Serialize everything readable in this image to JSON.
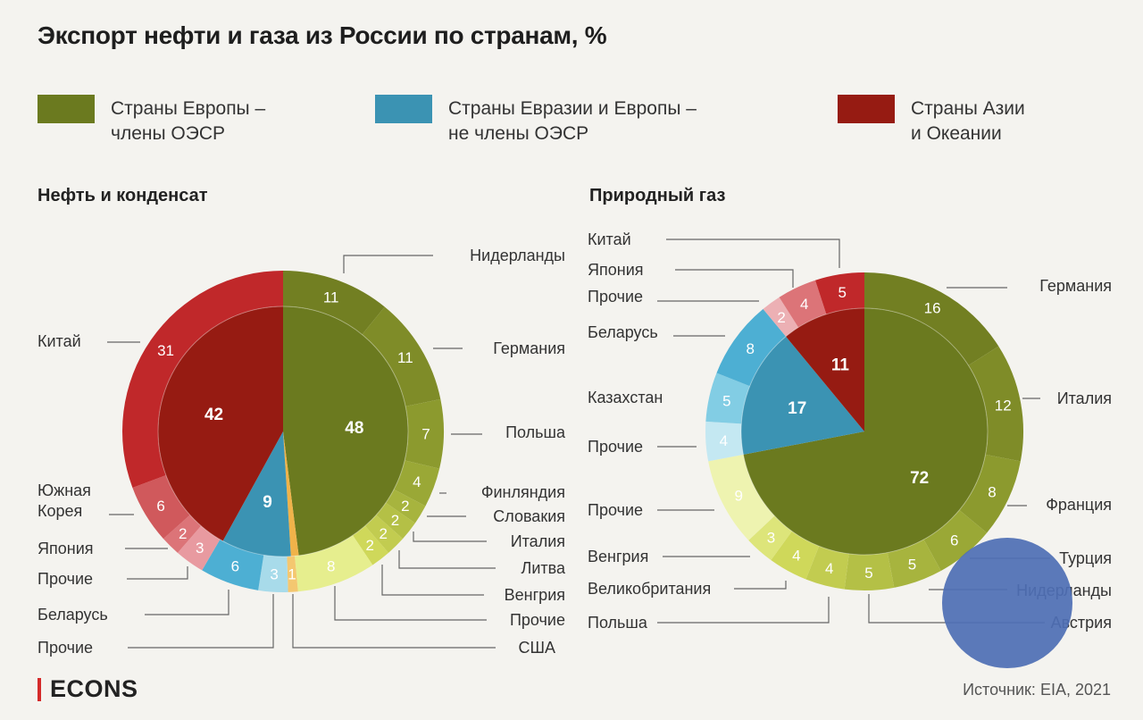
{
  "title": "Экспорт нефти и газа из России по странам, %",
  "legend": [
    {
      "line1": "Страны Европы –",
      "line2": "члены ОЭСР",
      "color": "#6b7a1f"
    },
    {
      "line1": "Страны Евразии и Европы –",
      "line2": "не члены ОЭСР",
      "color": "#3b93b3"
    },
    {
      "line1": "Страны Азии",
      "line2": "и Океании",
      "color": "#961b12"
    }
  ],
  "oil_title": "Нефть и конденсат",
  "gas_title": "Природный газ",
  "brand": "ECONS",
  "source": "Источник: EIA, 2021",
  "chart_data": [
    {
      "type": "pie",
      "title": "Нефть и конденсат",
      "inner": [
        {
          "label": "Страны Европы – члены ОЭСР",
          "value": 48
        },
        {
          "label": "США",
          "value": 1
        },
        {
          "label": "Страны Евразии и Европы – не члены ОЭСР",
          "value": 9
        },
        {
          "label": "Страны Азии и Океании",
          "value": 42
        }
      ],
      "outer": [
        {
          "label": "Нидерланды",
          "value": 11
        },
        {
          "label": "Германия",
          "value": 11
        },
        {
          "label": "Польша",
          "value": 7
        },
        {
          "label": "Финляндия",
          "value": 4
        },
        {
          "label": "Словакия",
          "value": 2
        },
        {
          "label": "Италия",
          "value": 2
        },
        {
          "label": "Литва",
          "value": 2
        },
        {
          "label": "Венгрия",
          "value": 2
        },
        {
          "label": "Прочие",
          "value": 8
        },
        {
          "label": "США",
          "value": 1
        },
        {
          "label": "Прочие",
          "value": 3
        },
        {
          "label": "Беларусь",
          "value": 6
        },
        {
          "label": "Прочие",
          "value": 3
        },
        {
          "label": "Япония",
          "value": 2
        },
        {
          "label": "Южная Корея",
          "value": 6
        },
        {
          "label": "Китай",
          "value": 31
        }
      ]
    },
    {
      "type": "pie",
      "title": "Природный газ",
      "inner": [
        {
          "label": "Страны Европы – члены ОЭСР",
          "value": 72
        },
        {
          "label": "Страны Евразии и Европы – не члены ОЭСР",
          "value": 17
        },
        {
          "label": "Страны Азии и Океании",
          "value": 11
        }
      ],
      "outer": [
        {
          "label": "Германия",
          "value": 16
        },
        {
          "label": "Италия",
          "value": 12
        },
        {
          "label": "Франция",
          "value": 8
        },
        {
          "label": "Турция",
          "value": 6
        },
        {
          "label": "Нидерланды",
          "value": 5
        },
        {
          "label": "Австрия",
          "value": 5
        },
        {
          "label": "Польша",
          "value": 4
        },
        {
          "label": "Великобритания",
          "value": 4
        },
        {
          "label": "Венгрия",
          "value": 3
        },
        {
          "label": "Прочие",
          "value": 9
        },
        {
          "label": "Прочие",
          "value": 4
        },
        {
          "label": "Казахстан",
          "value": 5
        },
        {
          "label": "Беларусь",
          "value": 8
        },
        {
          "label": "Прочие",
          "value": 2
        },
        {
          "label": "Япония",
          "value": 4
        },
        {
          "label": "Китай",
          "value": 5
        }
      ]
    }
  ]
}
